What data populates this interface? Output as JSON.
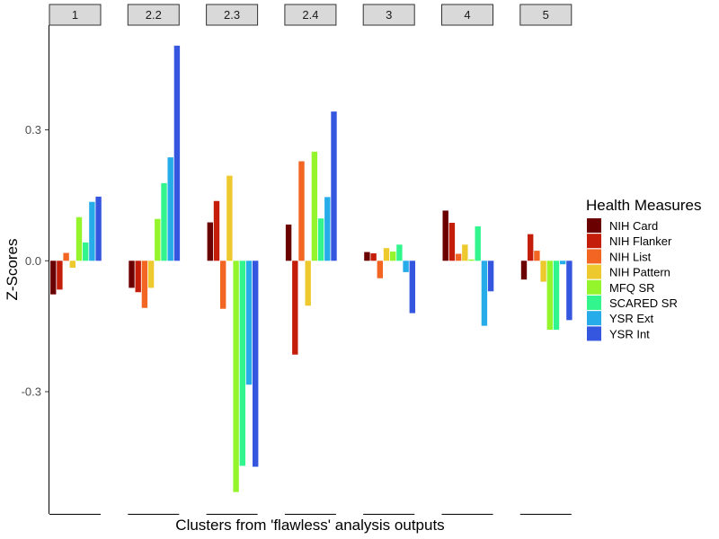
{
  "chart_data": {
    "type": "bar",
    "facets": [
      "1",
      "2.2",
      "2.3",
      "2.4",
      "3",
      "4",
      "5"
    ],
    "xlabel": "Clusters from 'flawless' analysis outputs",
    "ylabel": "Z-Scores",
    "ylim": [
      -0.58,
      0.54
    ],
    "yticks": [
      -0.3,
      0.0,
      0.3
    ],
    "ytick_labels": [
      "-0.3",
      "0.0",
      "0.3"
    ],
    "grid": false,
    "legend": {
      "title": "Health Measures",
      "placement": "right"
    },
    "series": [
      {
        "name": "NIH Card",
        "color": "#6b0000",
        "values": [
          -0.077,
          -0.062,
          0.088,
          0.083,
          0.02,
          0.115,
          -0.043
        ]
      },
      {
        "name": "NIH Flanker",
        "color": "#c41e0a",
        "values": [
          -0.066,
          -0.072,
          0.137,
          -0.215,
          0.017,
          0.087,
          0.061
        ]
      },
      {
        "name": "NIH List",
        "color": "#f26522",
        "values": [
          0.018,
          -0.108,
          -0.11,
          0.228,
          -0.04,
          0.016,
          0.023
        ]
      },
      {
        "name": "NIH Pattern",
        "color": "#eec92d",
        "values": [
          -0.016,
          -0.062,
          0.195,
          -0.103,
          0.029,
          0.037,
          -0.048
        ]
      },
      {
        "name": "MFQ SR",
        "color": "#94f52c",
        "values": [
          0.1,
          0.096,
          -0.53,
          0.25,
          0.021,
          0.003,
          -0.158
        ]
      },
      {
        "name": "SCARED SR",
        "color": "#33f58e",
        "values": [
          0.042,
          0.178,
          -0.47,
          0.097,
          0.037,
          0.079,
          -0.158
        ]
      },
      {
        "name": "YSR Ext",
        "color": "#25ace9",
        "values": [
          0.135,
          0.237,
          -0.284,
          0.146,
          -0.026,
          -0.149,
          -0.008
        ]
      },
      {
        "name": "YSR Int",
        "color": "#3557e0",
        "values": [
          0.147,
          0.493,
          -0.472,
          0.342,
          -0.12,
          -0.07,
          -0.136
        ]
      }
    ]
  }
}
